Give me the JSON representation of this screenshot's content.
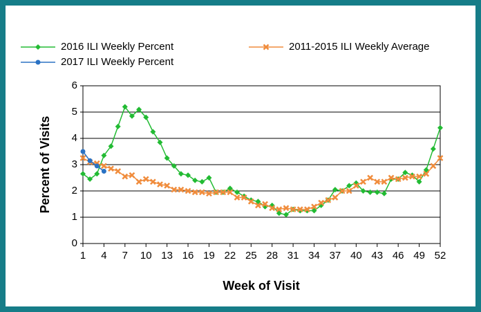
{
  "chart_data": {
    "type": "line",
    "x_label": "Week of Visit",
    "y_label": "Percent of Visits",
    "x": [
      1,
      2,
      3,
      4,
      5,
      6,
      7,
      8,
      9,
      10,
      11,
      12,
      13,
      14,
      15,
      16,
      17,
      18,
      19,
      20,
      21,
      22,
      23,
      24,
      25,
      26,
      27,
      28,
      29,
      30,
      31,
      32,
      33,
      34,
      35,
      36,
      37,
      38,
      39,
      40,
      41,
      42,
      43,
      44,
      45,
      46,
      47,
      48,
      49,
      50,
      51,
      52
    ],
    "series": [
      {
        "name": "2016 ILI Weekly Percent",
        "color": "#22bb33",
        "marker": "diamond",
        "values": [
          2.65,
          2.45,
          2.65,
          3.35,
          3.7,
          4.45,
          5.2,
          4.85,
          5.1,
          4.8,
          4.25,
          3.85,
          3.25,
          2.95,
          2.65,
          2.6,
          2.4,
          2.35,
          2.5,
          1.95,
          1.95,
          2.1,
          1.95,
          1.8,
          1.65,
          1.6,
          1.4,
          1.45,
          1.15,
          1.1,
          1.3,
          1.25,
          1.25,
          1.25,
          1.45,
          1.65,
          2.05,
          2.0,
          2.2,
          2.3,
          2.0,
          1.95,
          1.95,
          1.9,
          2.45,
          2.45,
          2.7,
          2.6,
          2.35,
          2.8,
          3.6,
          4.4
        ]
      },
      {
        "name": "2011-2015 ILI Weekly Average",
        "color": "#f08c3c",
        "marker": "x",
        "values": [
          3.25,
          3.1,
          3.05,
          2.95,
          2.85,
          2.75,
          2.55,
          2.6,
          2.35,
          2.45,
          2.35,
          2.25,
          2.2,
          2.05,
          2.05,
          2.0,
          1.95,
          1.95,
          1.9,
          1.95,
          1.95,
          1.95,
          1.75,
          1.75,
          1.6,
          1.45,
          1.5,
          1.35,
          1.3,
          1.35,
          1.3,
          1.3,
          1.3,
          1.4,
          1.55,
          1.65,
          1.75,
          2.0,
          2.0,
          2.2,
          2.35,
          2.5,
          2.35,
          2.35,
          2.5,
          2.45,
          2.5,
          2.55,
          2.55,
          2.65,
          2.95,
          3.25
        ]
      },
      {
        "name": "2017 ILI Weekly Percent",
        "color": "#2a72c4",
        "marker": "circle",
        "values": [
          3.5,
          3.15,
          2.95,
          2.75,
          null,
          null,
          null,
          null,
          null,
          null,
          null,
          null,
          null,
          null,
          null,
          null,
          null,
          null,
          null,
          null,
          null,
          null,
          null,
          null,
          null,
          null,
          null,
          null,
          null,
          null,
          null,
          null,
          null,
          null,
          null,
          null,
          null,
          null,
          null,
          null,
          null,
          null,
          null,
          null,
          null,
          null,
          null,
          null,
          null,
          null,
          null,
          null
        ]
      }
    ],
    "xlim": [
      1,
      52
    ],
    "xticks": [
      1,
      4,
      7,
      10,
      13,
      16,
      19,
      22,
      25,
      28,
      31,
      34,
      37,
      40,
      43,
      46,
      49,
      52
    ],
    "ylim": [
      0,
      6
    ],
    "yticks": [
      0,
      1,
      2,
      3,
      4,
      5,
      6
    ],
    "grid": true
  }
}
